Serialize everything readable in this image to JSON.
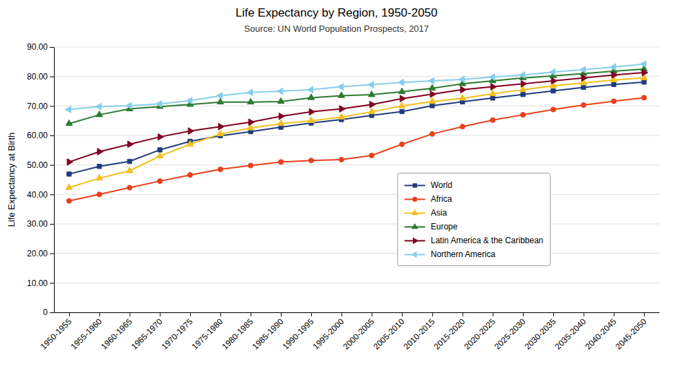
{
  "chart_data": {
    "type": "line",
    "title": "Life Expectancy by Region, 1950-2050",
    "subtitle": "Source: UN World Population Prospects, 2017",
    "ylabel": "Life Expectancy at Birth",
    "categories": [
      "1950-1955",
      "1955-1960",
      "1960-1965",
      "1965-1970",
      "1970-1975",
      "1975-1980",
      "1980-1985",
      "1985-1990",
      "1990-1995",
      "1995-2000",
      "2000-2005",
      "2005-2010",
      "2010-2015",
      "2015-2020",
      "2020-2025",
      "2025-2030",
      "2030-2035",
      "2035-2040",
      "2040-2045",
      "2045-2050"
    ],
    "series": [
      {
        "name": "World",
        "color": "#1f3c7d",
        "marker": "square",
        "values": [
          46.9,
          49.5,
          51.2,
          55.1,
          58.0,
          59.9,
          61.3,
          62.8,
          64.2,
          65.4,
          66.8,
          68.1,
          70.1,
          71.4,
          72.7,
          73.9,
          75.1,
          76.3,
          77.3,
          78.1
        ]
      },
      {
        "name": "Africa",
        "color": "#e8401c",
        "marker": "circle",
        "values": [
          37.8,
          40.0,
          42.3,
          44.5,
          46.6,
          48.5,
          49.8,
          51.0,
          51.5,
          51.8,
          53.2,
          57.0,
          60.5,
          63.0,
          65.2,
          67.0,
          68.8,
          70.3,
          71.6,
          72.8
        ]
      },
      {
        "name": "Asia",
        "color": "#f0c020",
        "marker": "triangle-up",
        "values": [
          42.3,
          45.5,
          48.0,
          53.0,
          57.0,
          60.5,
          62.5,
          64.0,
          65.0,
          66.2,
          68.0,
          70.0,
          71.5,
          72.6,
          74.1,
          75.5,
          76.8,
          77.8,
          78.8,
          79.5
        ]
      },
      {
        "name": "Europe",
        "color": "#2d7a30",
        "marker": "triangle-up",
        "values": [
          64.0,
          67.0,
          69.0,
          69.8,
          70.5,
          71.3,
          71.3,
          71.5,
          72.8,
          73.5,
          73.8,
          74.8,
          76.0,
          77.5,
          78.5,
          79.5,
          80.2,
          81.0,
          81.8,
          82.5
        ]
      },
      {
        "name": "Latin America & the Caribbean",
        "color": "#800020",
        "marker": "triangle-right",
        "values": [
          51.0,
          54.5,
          57.0,
          59.5,
          61.5,
          63.0,
          64.5,
          66.5,
          68.0,
          69.0,
          70.5,
          72.5,
          74.0,
          75.5,
          76.5,
          77.5,
          78.5,
          79.5,
          80.5,
          81.3
        ]
      },
      {
        "name": "Northern America",
        "color": "#87ceeb",
        "marker": "triangle-left",
        "values": [
          68.8,
          69.8,
          70.1,
          70.7,
          71.8,
          73.5,
          74.6,
          75.0,
          75.5,
          76.5,
          77.2,
          78.0,
          78.5,
          79.0,
          79.8,
          80.5,
          81.5,
          82.3,
          83.2,
          84.2
        ]
      }
    ],
    "ylim": [
      0,
      90
    ],
    "yticks": [
      0,
      {
        "value": 10,
        "label": "10.00"
      },
      {
        "value": 20,
        "label": "20.00"
      },
      {
        "value": 30,
        "label": "30.00"
      },
      {
        "value": 40,
        "label": "40.00"
      },
      {
        "value": 50,
        "label": "50.00"
      },
      {
        "value": 60,
        "label": "60.00"
      },
      {
        "value": 70,
        "label": "70.00"
      },
      {
        "value": 80,
        "label": "80.00"
      },
      {
        "value": 90,
        "label": "90.00"
      }
    ],
    "grid": true,
    "legend": "right"
  }
}
